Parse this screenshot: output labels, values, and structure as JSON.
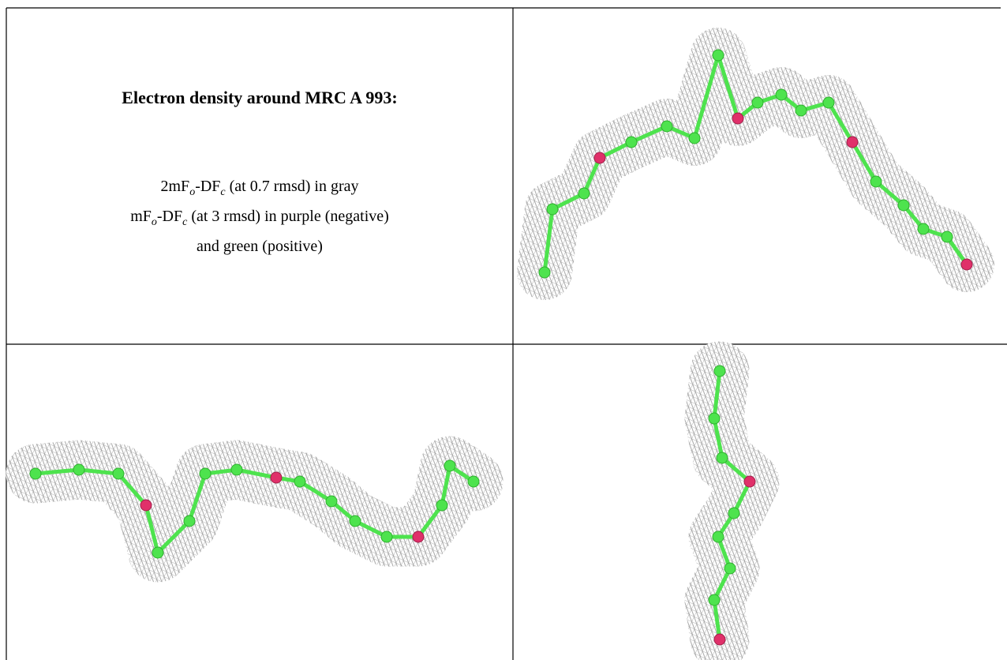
{
  "table": {
    "title": "Electron density around MRC A 993:",
    "legend": [
      [
        "2mF",
        "o",
        "-DF",
        "c",
        " (at 0.7 rmsd) in gray"
      ],
      [
        "mF",
        "o",
        "-DF",
        "c",
        " (at 3 rmsd) in purple (negative)"
      ],
      [
        "and green (positive)"
      ]
    ]
  }
}
